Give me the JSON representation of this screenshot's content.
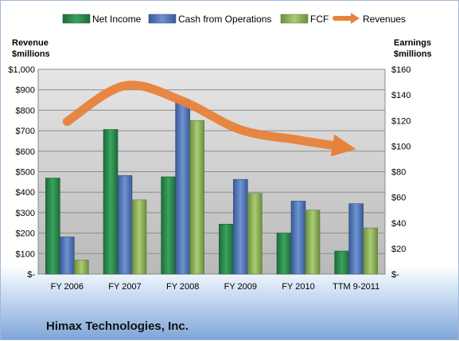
{
  "chart_data": {
    "type": "bar",
    "title": "Himax Technologies, Inc.",
    "categories": [
      "FY 2006",
      "FY 2007",
      "FY 2008",
      "FY 2009",
      "FY 2010",
      "TTM 9-2011"
    ],
    "left_axis": {
      "label_line1": "Revenue",
      "label_line2": "$millions",
      "range": [
        0,
        1000
      ],
      "ticks": [
        {
          "value": 0,
          "label": "$-"
        },
        {
          "value": 100,
          "label": "$100"
        },
        {
          "value": 200,
          "label": "$200"
        },
        {
          "value": 300,
          "label": "$300"
        },
        {
          "value": 400,
          "label": "$400"
        },
        {
          "value": 500,
          "label": "$500"
        },
        {
          "value": 600,
          "label": "$600"
        },
        {
          "value": 700,
          "label": "$700"
        },
        {
          "value": 800,
          "label": "$800"
        },
        {
          "value": 900,
          "label": "$900"
        },
        {
          "value": 1000,
          "label": "$1,000"
        }
      ]
    },
    "right_axis": {
      "label_line1": "Earnings",
      "label_line2": "$millions",
      "range": [
        0,
        160
      ],
      "ticks": [
        {
          "value": 0,
          "label": "$-"
        },
        {
          "value": 20,
          "label": "$20"
        },
        {
          "value": 40,
          "label": "$40"
        },
        {
          "value": 60,
          "label": "$60"
        },
        {
          "value": 80,
          "label": "$80"
        },
        {
          "value": 100,
          "label": "$100"
        },
        {
          "value": 120,
          "label": "$120"
        },
        {
          "value": 140,
          "label": "$140"
        },
        {
          "value": 160,
          "label": "$160"
        }
      ]
    },
    "series": [
      {
        "name": "Net Income",
        "kind": "bar",
        "axis": "right",
        "color": "#2e8b4e",
        "values": [
          75,
          113,
          76,
          39,
          32,
          18
        ]
      },
      {
        "name": "Cash from Operations",
        "kind": "bar",
        "axis": "right",
        "color": "#4f74b8",
        "values": [
          29,
          77,
          136,
          74,
          57,
          55
        ]
      },
      {
        "name": "FCF",
        "kind": "bar",
        "axis": "right",
        "color": "#8db35b",
        "values": [
          11,
          58,
          120,
          63,
          50,
          36
        ]
      },
      {
        "name": "Revenues",
        "kind": "line",
        "axis": "left",
        "color": "#e8823a",
        "values": [
          745,
          920,
          845,
          705,
          655,
          610
        ]
      }
    ],
    "grid": true,
    "legend_placement": "top"
  }
}
